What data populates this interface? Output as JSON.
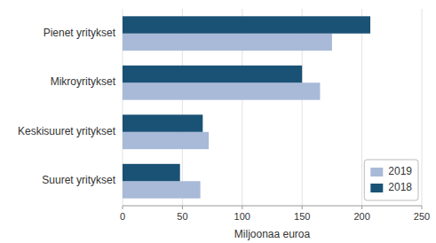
{
  "chart_data": {
    "type": "bar",
    "orientation": "horizontal",
    "categories": [
      "Pienet yritykset",
      "Mikroyritykset",
      "Keskisuuret yritykset",
      "Suuret yritykset"
    ],
    "series": [
      {
        "name": "2019",
        "color": "#a8bad8",
        "values": [
          175,
          165,
          72,
          65
        ]
      },
      {
        "name": "2018",
        "color": "#1a5276",
        "values": [
          207,
          150,
          67,
          48
        ]
      }
    ],
    "xlabel": "Miljoonaa euroa",
    "xlim": [
      0,
      250
    ],
    "xticks": [
      0,
      50,
      100,
      150,
      200,
      250
    ],
    "grid": true,
    "legend": "lower right"
  }
}
